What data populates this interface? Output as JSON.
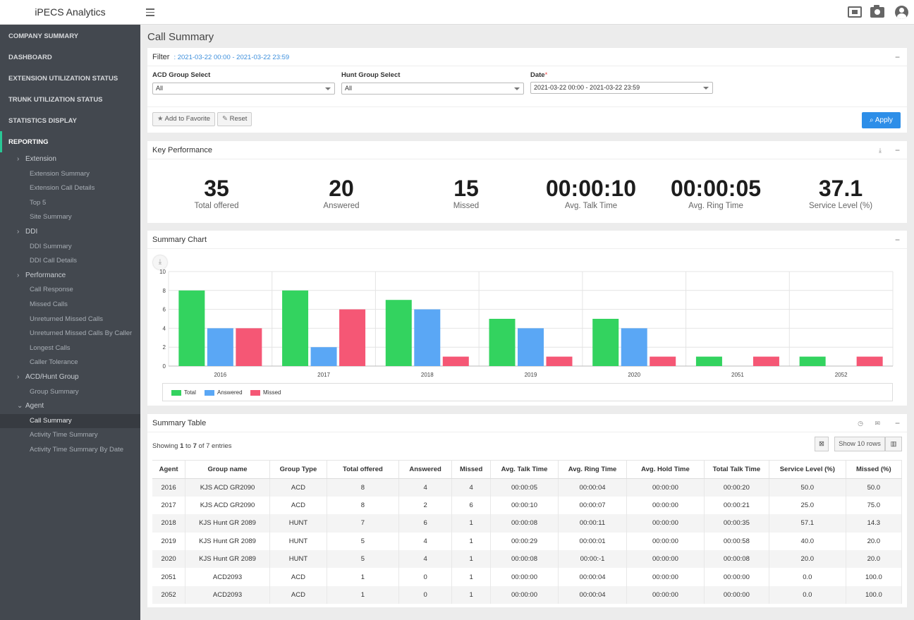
{
  "app": {
    "title": "iPECS Analytics"
  },
  "topbar": {
    "icons": [
      "fullscreen-icon",
      "camera-icon",
      "user-icon"
    ]
  },
  "sidebar": {
    "main_items": [
      "COMPANY SUMMARY",
      "DASHBOARD",
      "EXTENSION UTILIZATION STATUS",
      "TRUNK UTILIZATION STATUS",
      "STATISTICS DISPLAY",
      "REPORTING"
    ],
    "groups": [
      {
        "label": "Extension",
        "items": [
          "Extension Summary",
          "Extension Call Details",
          "Top 5",
          "Site Summary"
        ]
      },
      {
        "label": "DDI",
        "items": [
          "DDI Summary",
          "DDI Call Details"
        ]
      },
      {
        "label": "Performance",
        "items": [
          "Call Response",
          "Missed Calls",
          "Unreturned Missed Calls",
          "Unreturned Missed Calls By Caller",
          "Longest Calls",
          "Caller Tolerance"
        ]
      },
      {
        "label": "ACD/Hunt Group",
        "items": [
          "Group Summary"
        ]
      },
      {
        "label": "Agent",
        "items": [
          "Call Summary",
          "Activity Time Summary",
          "Activity Time Summary By Date"
        ]
      }
    ]
  },
  "page": {
    "title": "Call Summary"
  },
  "filter": {
    "title": "Filter",
    "range": ": 2021-03-22 00:00 - 2021-03-22 23:59",
    "acd_label": "ACD Group Select",
    "acd_value": "All",
    "hunt_label": "Hunt Group Select",
    "hunt_value": "All",
    "date_label": "Date",
    "date_required": "*",
    "date_value": "2021-03-22 00:00 - 2021-03-22 23:59",
    "favorite_label": "Add to Favorite",
    "reset_label": "Reset",
    "apply_label": "Apply"
  },
  "kpi": {
    "title": "Key Performance",
    "items": [
      {
        "value": "35",
        "label": "Total offered"
      },
      {
        "value": "20",
        "label": "Answered"
      },
      {
        "value": "15",
        "label": "Missed"
      },
      {
        "value": "00:00:10",
        "label": "Avg. Talk Time"
      },
      {
        "value": "00:00:05",
        "label": "Avg. Ring Time"
      },
      {
        "value": "37.1",
        "label": "Service Level (%)"
      }
    ]
  },
  "chart": {
    "title": "Summary Chart",
    "colors": {
      "Total": "#33d35f",
      "Answered": "#5aa7f5",
      "Missed": "#f55775"
    }
  },
  "chart_data": {
    "type": "bar",
    "categories": [
      "2016",
      "2017",
      "2018",
      "2019",
      "2020",
      "2051",
      "2052"
    ],
    "series": [
      {
        "name": "Total",
        "values": [
          8,
          8,
          7,
          5,
          5,
          1,
          1
        ]
      },
      {
        "name": "Answered",
        "values": [
          4,
          2,
          6,
          4,
          4,
          0,
          0
        ]
      },
      {
        "name": "Missed",
        "values": [
          4,
          6,
          1,
          1,
          1,
          1,
          1
        ]
      }
    ],
    "ylim": [
      0,
      10
    ],
    "yticks": [
      0,
      2,
      4,
      6,
      8,
      10
    ],
    "grid": true,
    "legend": "bottom"
  },
  "table": {
    "title": "Summary Table",
    "info_prefix": "Showing ",
    "info_from": "1",
    "info_mid": " to ",
    "info_to": "7",
    "info_suffix": " of 7 entries",
    "show_rows_label": "Show 10 rows",
    "columns": [
      "Agent",
      "Group name",
      "Group Type",
      "Total offered",
      "Answered",
      "Missed",
      "Avg. Talk Time",
      "Avg. Ring Time",
      "Avg. Hold Time",
      "Total Talk Time",
      "Service Level (%)",
      "Missed (%)"
    ],
    "rows": [
      [
        "2016",
        "KJS ACD GR2090",
        "ACD",
        "8",
        "4",
        "4",
        "00:00:05",
        "00:00:04",
        "00:00:00",
        "00:00:20",
        "50.0",
        "50.0"
      ],
      [
        "2017",
        "KJS ACD GR2090",
        "ACD",
        "8",
        "2",
        "6",
        "00:00:10",
        "00:00:07",
        "00:00:00",
        "00:00:21",
        "25.0",
        "75.0"
      ],
      [
        "2018",
        "KJS Hunt GR 2089",
        "HUNT",
        "7",
        "6",
        "1",
        "00:00:08",
        "00:00:11",
        "00:00:00",
        "00:00:35",
        "57.1",
        "14.3"
      ],
      [
        "2019",
        "KJS Hunt GR 2089",
        "HUNT",
        "5",
        "4",
        "1",
        "00:00:29",
        "00:00:01",
        "00:00:00",
        "00:00:58",
        "40.0",
        "20.0"
      ],
      [
        "2020",
        "KJS Hunt GR 2089",
        "HUNT",
        "5",
        "4",
        "1",
        "00:00:08",
        "00:00:-1",
        "00:00:00",
        "00:00:08",
        "20.0",
        "20.0"
      ],
      [
        "2051",
        "ACD2093",
        "ACD",
        "1",
        "0",
        "1",
        "00:00:00",
        "00:00:04",
        "00:00:00",
        "00:00:00",
        "0.0",
        "100.0"
      ],
      [
        "2052",
        "ACD2093",
        "ACD",
        "1",
        "0",
        "1",
        "00:00:00",
        "00:00:04",
        "00:00:00",
        "00:00:00",
        "0.0",
        "100.0"
      ]
    ]
  }
}
